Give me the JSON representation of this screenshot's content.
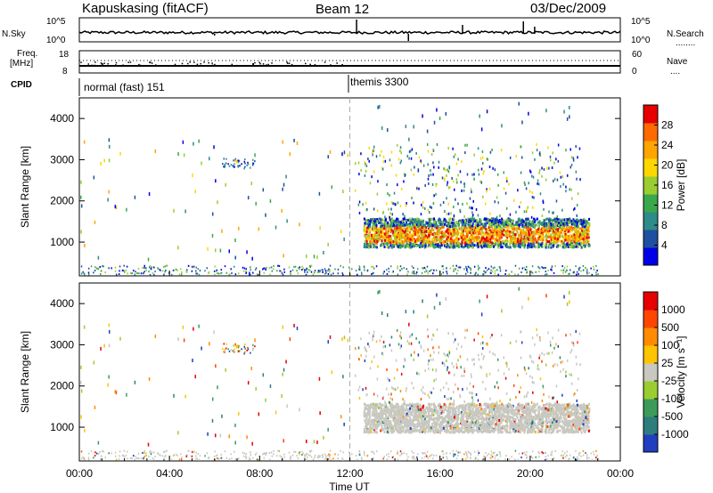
{
  "header": {
    "station": "Kapuskasing (fitACF)",
    "beam": "Beam 12",
    "date": "03/Dec/2009"
  },
  "aux_labels": {
    "nsky": "N.Sky",
    "nsearch": "N.Search",
    "freq_line1": "Freq.",
    "freq_line2": "[MHz]",
    "nave": "Nave",
    "cpid": "CPID",
    "nsky_ticks": [
      "10^5",
      "10^0"
    ],
    "nsearch_ticks": [
      "10^5",
      "10^0"
    ],
    "freq_ticks": [
      "18",
      "8"
    ],
    "nave_ticks": [
      "60",
      "0"
    ],
    "nsearch_dots": "........",
    "nave_dots": "...."
  },
  "cpid_modes": [
    {
      "label": "normal (fast) 151",
      "start_hour": 0
    },
    {
      "label": "themis 3300",
      "start_hour": 12
    }
  ],
  "power_colorbar": {
    "label": "Power [dB]",
    "ticks": [
      "28",
      "24",
      "20",
      "16",
      "12",
      "8",
      "4"
    ],
    "colors": [
      "#0000e6",
      "#1f4fa0",
      "#2f8a8a",
      "#3aa84a",
      "#9acd32",
      "#ffd700",
      "#ffa500",
      "#ff6a00",
      "#e60000"
    ]
  },
  "velocity_colorbar": {
    "label": "Velocity [m s⁻¹]",
    "ticks": [
      "1000",
      "500",
      "100",
      "25",
      "-25",
      "-100",
      "-500",
      "-1000"
    ],
    "colors": [
      "#1f3fbf",
      "#2e7d7d",
      "#3c9b5a",
      "#9acd32",
      "#c8c8c0",
      "#ffc400",
      "#ff8c00",
      "#ff4500",
      "#e60000"
    ]
  },
  "chart_data": [
    {
      "type": "heatmap",
      "parameter": "power",
      "xlabel": "",
      "ylabel": "Slant Range [km]",
      "xlim": [
        0,
        24
      ],
      "ylim": [
        180,
        4500
      ],
      "yticks": [
        "4000",
        "3000",
        "2000",
        "1000"
      ],
      "ytick_values": [
        4000,
        3000,
        2000,
        1000
      ],
      "color_scale": [
        0,
        30
      ]
    },
    {
      "type": "heatmap",
      "parameter": "velocity",
      "xlabel": "Time UT",
      "ylabel": "Slant Range [km]",
      "xlim": [
        0,
        24
      ],
      "ylim": [
        180,
        4500
      ],
      "yticks": [
        "4000",
        "3000",
        "2000",
        "1000"
      ],
      "ytick_values": [
        4000,
        3000,
        2000,
        1000
      ],
      "xticks": [
        "00:00",
        "04:00",
        "08:00",
        "12:00",
        "16:00",
        "20:00",
        "00:00"
      ],
      "xtick_values": [
        0,
        4,
        8,
        12,
        16,
        20,
        24
      ]
    }
  ]
}
